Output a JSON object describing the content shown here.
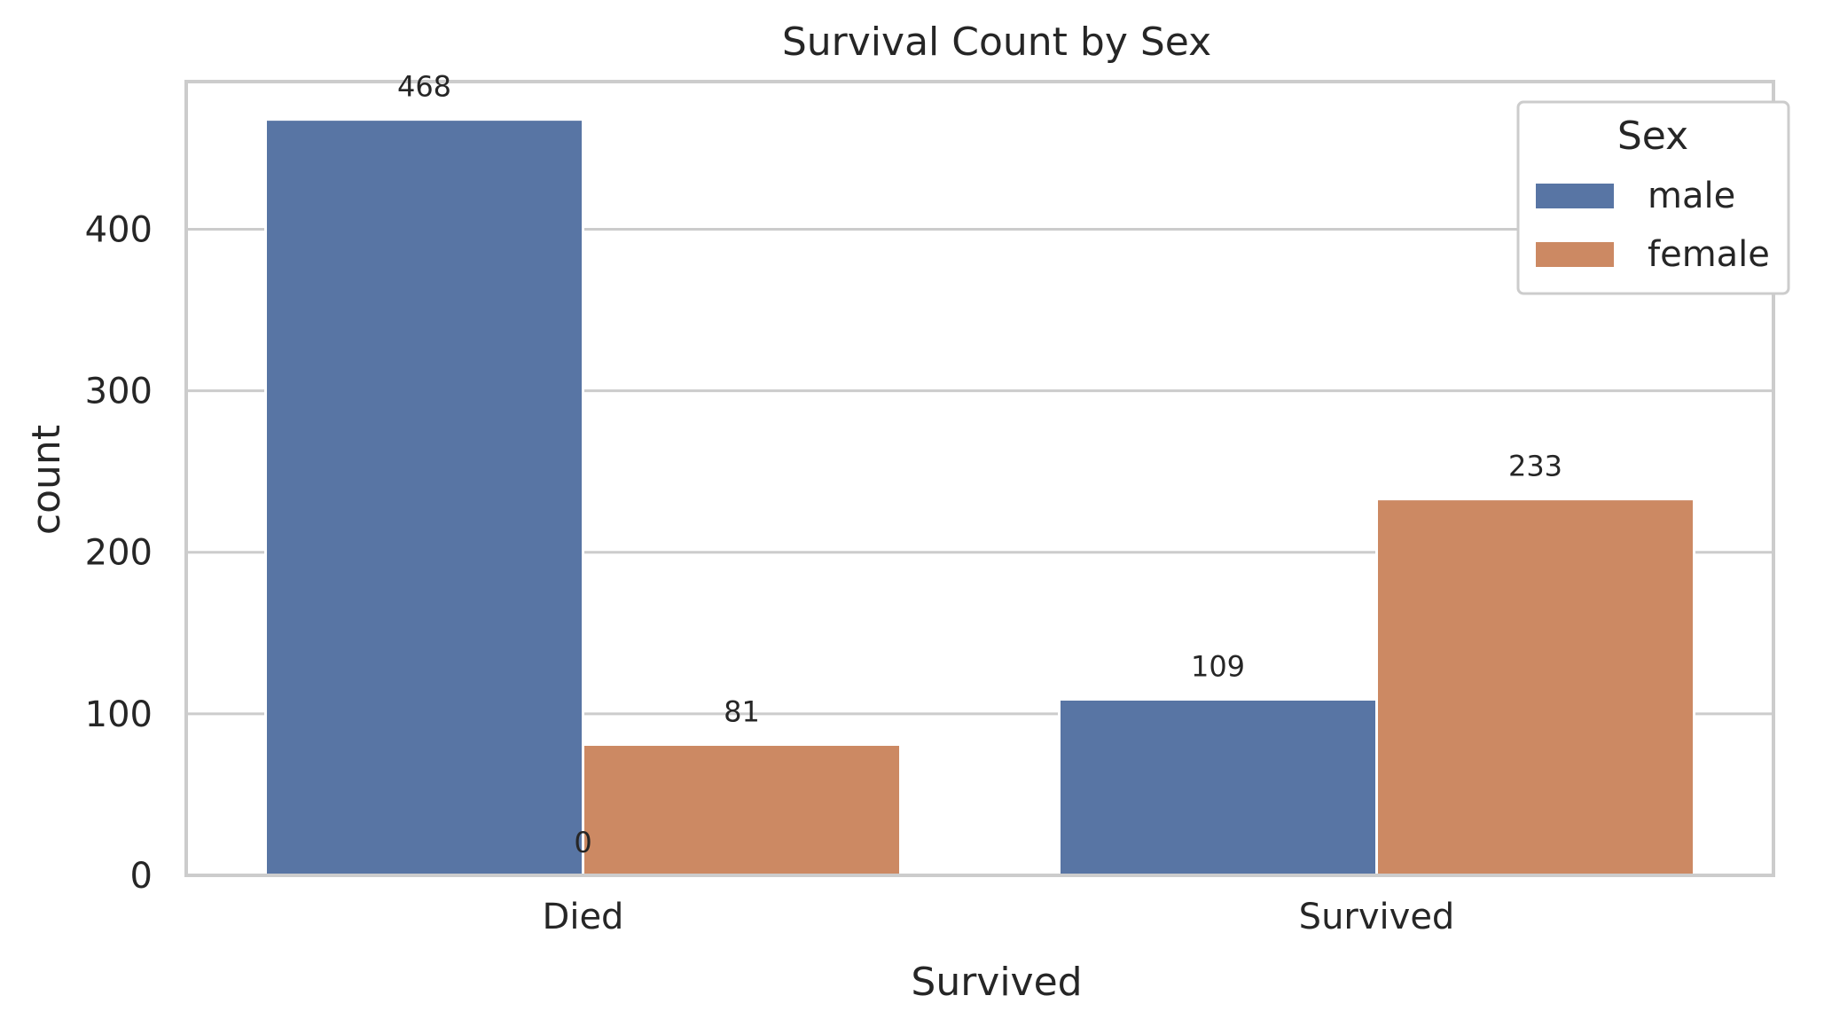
{
  "chart_data": {
    "type": "bar",
    "title": "Survival Count by Sex",
    "xlabel": "Survived",
    "ylabel": "count",
    "categories": [
      "Died",
      "Survived"
    ],
    "series": [
      {
        "name": "male",
        "color": "#5875a4",
        "values": [
          468,
          109
        ]
      },
      {
        "name": "female",
        "color": "#cc8963",
        "values": [
          81,
          233
        ]
      }
    ],
    "bar_labels": [
      {
        "text": "468",
        "category": 0,
        "series": 0,
        "value": 468
      },
      {
        "text": "81",
        "category": 0,
        "series": 1,
        "value": 81
      },
      {
        "text": "109",
        "category": 1,
        "series": 0,
        "value": 109
      },
      {
        "text": "233",
        "category": 1,
        "series": 1,
        "value": 233
      },
      {
        "text": "0",
        "category": 0,
        "series": 0.5,
        "value": 0
      }
    ],
    "yticks": [
      0,
      100,
      200,
      300,
      400
    ],
    "ylim": [
      0,
      491.4
    ],
    "grid": true,
    "legend": {
      "title": "Sex",
      "position": "top-right"
    },
    "colors": {
      "grid": "#cccccc",
      "frame": "#cccccc",
      "background": "#ffffff"
    }
  }
}
